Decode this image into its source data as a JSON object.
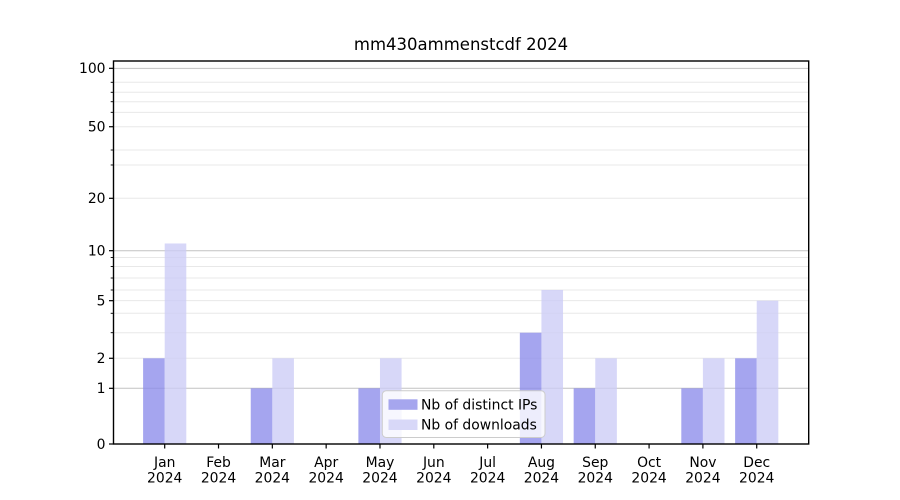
{
  "figure": {
    "background": "#ffffff"
  },
  "chart_data": {
    "type": "bar",
    "title": "mm430ammenstcdf 2024",
    "categories": [
      "Jan",
      "Feb",
      "Mar",
      "Apr",
      "May",
      "Jun",
      "Jul",
      "Aug",
      "Sep",
      "Oct",
      "Nov",
      "Dec"
    ],
    "category_year": "2024",
    "series": [
      {
        "name": "Nb of distinct IPs",
        "color": "#8c8cea",
        "legend_color": "#a6a6ee",
        "values": [
          2,
          0,
          1,
          0,
          1,
          0,
          0,
          3,
          1,
          0,
          1,
          2
        ]
      },
      {
        "name": "Nb of downloads",
        "color": "#ccccf6",
        "legend_color": "#d8d8f8",
        "values": [
          11,
          0,
          2,
          0,
          2,
          0,
          0,
          6,
          2,
          0,
          2,
          5
        ]
      }
    ],
    "y_axis": {
      "scale": "log-like with 0 baseline",
      "ylim": [
        0,
        110
      ],
      "tick_values": [
        0,
        1,
        2,
        5,
        10,
        20,
        50,
        100
      ],
      "tick_labels": [
        "0",
        "1",
        "2",
        "5",
        "10",
        "20",
        "50",
        "100"
      ],
      "minor_values": [
        3,
        4,
        6,
        7,
        8,
        9,
        30,
        40,
        60,
        70,
        80,
        90
      ],
      "major_grid_values": [
        1,
        10,
        100
      ],
      "grid_color_major": "#c2c2c2",
      "grid_color_minor": "#e8e8e8",
      "scale_points": [
        [
          0,
          0.0
        ],
        [
          1,
          0.1454
        ],
        [
          2,
          0.2238
        ],
        [
          3,
          0.2906
        ],
        [
          4,
          0.3413
        ],
        [
          5,
          0.3742
        ],
        [
          6,
          0.4021
        ],
        [
          7,
          0.4334
        ],
        [
          8,
          0.4634
        ],
        [
          9,
          0.487
        ],
        [
          10,
          0.5047
        ],
        [
          20,
          0.6415
        ],
        [
          30,
          0.7285
        ],
        [
          40,
          0.7676
        ],
        [
          50,
          0.8284
        ],
        [
          60,
          0.866
        ],
        [
          70,
          0.8937
        ],
        [
          80,
          0.9183
        ],
        [
          90,
          0.9444
        ],
        [
          100,
          0.9809
        ]
      ]
    },
    "x_axis": {
      "grid": false
    },
    "legend": {
      "position": "lower center",
      "background": "#ffffff",
      "border_color": "#cccccc",
      "items": [
        "Nb of distinct IPs",
        "Nb of downloads"
      ]
    },
    "bar_opacity": 0.78,
    "spine_color": "#000000"
  }
}
